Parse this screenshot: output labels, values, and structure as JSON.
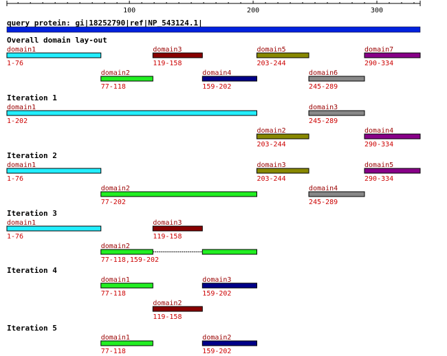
{
  "ruler": {
    "min": 1,
    "max": 334,
    "minor_step": 10,
    "major_labels": [
      100,
      200,
      300
    ]
  },
  "query": {
    "label": "query protein: gi|18252790|ref|NP_543124.1|",
    "length": 334,
    "color": "#0022dd"
  },
  "colors": {
    "cyan": "#22eeff",
    "maroon": "#880000",
    "olive": "#888800",
    "purple": "#880088",
    "green": "#22ee22",
    "navy": "#000088",
    "gray": "#888888",
    "name_text": "#990000",
    "range_text": "#cc0000"
  },
  "sections": [
    {
      "title": "Overall domain lay-out",
      "rows": [
        [
          {
            "name": "domain1",
            "range": "1-76",
            "segments": [
              [
                1,
                76
              ]
            ],
            "color": "cyan"
          },
          {
            "name": "domain3",
            "range": "119-158",
            "segments": [
              [
                119,
                158
              ]
            ],
            "color": "maroon"
          },
          {
            "name": "domain5",
            "range": "203-244",
            "segments": [
              [
                203,
                244
              ]
            ],
            "color": "olive"
          },
          {
            "name": "domain7",
            "range": "290-334",
            "segments": [
              [
                290,
                334
              ]
            ],
            "color": "purple"
          }
        ],
        [
          {
            "name": "domain2",
            "range": "77-118",
            "segments": [
              [
                77,
                118
              ]
            ],
            "color": "green"
          },
          {
            "name": "domain4",
            "range": "159-202",
            "segments": [
              [
                159,
                202
              ]
            ],
            "color": "navy"
          },
          {
            "name": "domain6",
            "range": "245-289",
            "segments": [
              [
                245,
                289
              ]
            ],
            "color": "gray"
          }
        ]
      ]
    },
    {
      "title": "Iteration 1",
      "rows": [
        [
          {
            "name": "domain1",
            "range": "1-202",
            "segments": [
              [
                1,
                202
              ]
            ],
            "color": "cyan"
          },
          {
            "name": "domain3",
            "range": "245-289",
            "segments": [
              [
                245,
                289
              ]
            ],
            "color": "gray"
          }
        ],
        [
          {
            "name": "domain2",
            "range": "203-244",
            "segments": [
              [
                203,
                244
              ]
            ],
            "color": "olive"
          },
          {
            "name": "domain4",
            "range": "290-334",
            "segments": [
              [
                290,
                334
              ]
            ],
            "color": "purple"
          }
        ]
      ]
    },
    {
      "title": "Iteration 2",
      "rows": [
        [
          {
            "name": "domain1",
            "range": "1-76",
            "segments": [
              [
                1,
                76
              ]
            ],
            "color": "cyan"
          },
          {
            "name": "domain3",
            "range": "203-244",
            "segments": [
              [
                203,
                244
              ]
            ],
            "color": "olive"
          },
          {
            "name": "domain5",
            "range": "290-334",
            "segments": [
              [
                290,
                334
              ]
            ],
            "color": "purple"
          }
        ],
        [
          {
            "name": "domain2",
            "range": "77-202",
            "segments": [
              [
                77,
                202
              ]
            ],
            "color": "green"
          },
          {
            "name": "domain4",
            "range": "245-289",
            "segments": [
              [
                245,
                289
              ]
            ],
            "color": "gray"
          }
        ]
      ]
    },
    {
      "title": "Iteration 3",
      "rows": [
        [
          {
            "name": "domain1",
            "range": "1-76",
            "segments": [
              [
                1,
                76
              ]
            ],
            "color": "cyan"
          },
          {
            "name": "domain3",
            "range": "119-158",
            "segments": [
              [
                119,
                158
              ]
            ],
            "color": "maroon"
          }
        ],
        [
          {
            "name": "domain2",
            "range": "77-118,159-202",
            "segments": [
              [
                77,
                118
              ],
              [
                159,
                202
              ]
            ],
            "color": "green"
          }
        ]
      ]
    },
    {
      "title": "Iteration 4",
      "rows": [
        [
          {
            "name": "domain1",
            "range": "77-118",
            "segments": [
              [
                77,
                118
              ]
            ],
            "color": "green"
          },
          {
            "name": "domain3",
            "range": "159-202",
            "segments": [
              [
                159,
                202
              ]
            ],
            "color": "navy"
          }
        ],
        [
          {
            "name": "domain2",
            "range": "119-158",
            "segments": [
              [
                119,
                158
              ]
            ],
            "color": "maroon"
          }
        ]
      ]
    },
    {
      "title": "Iteration 5",
      "rows": [
        [
          {
            "name": "domain1",
            "range": "77-118",
            "segments": [
              [
                77,
                118
              ]
            ],
            "color": "green"
          },
          {
            "name": "domain2",
            "range": "159-202",
            "segments": [
              [
                159,
                202
              ]
            ],
            "color": "navy"
          }
        ]
      ]
    }
  ]
}
